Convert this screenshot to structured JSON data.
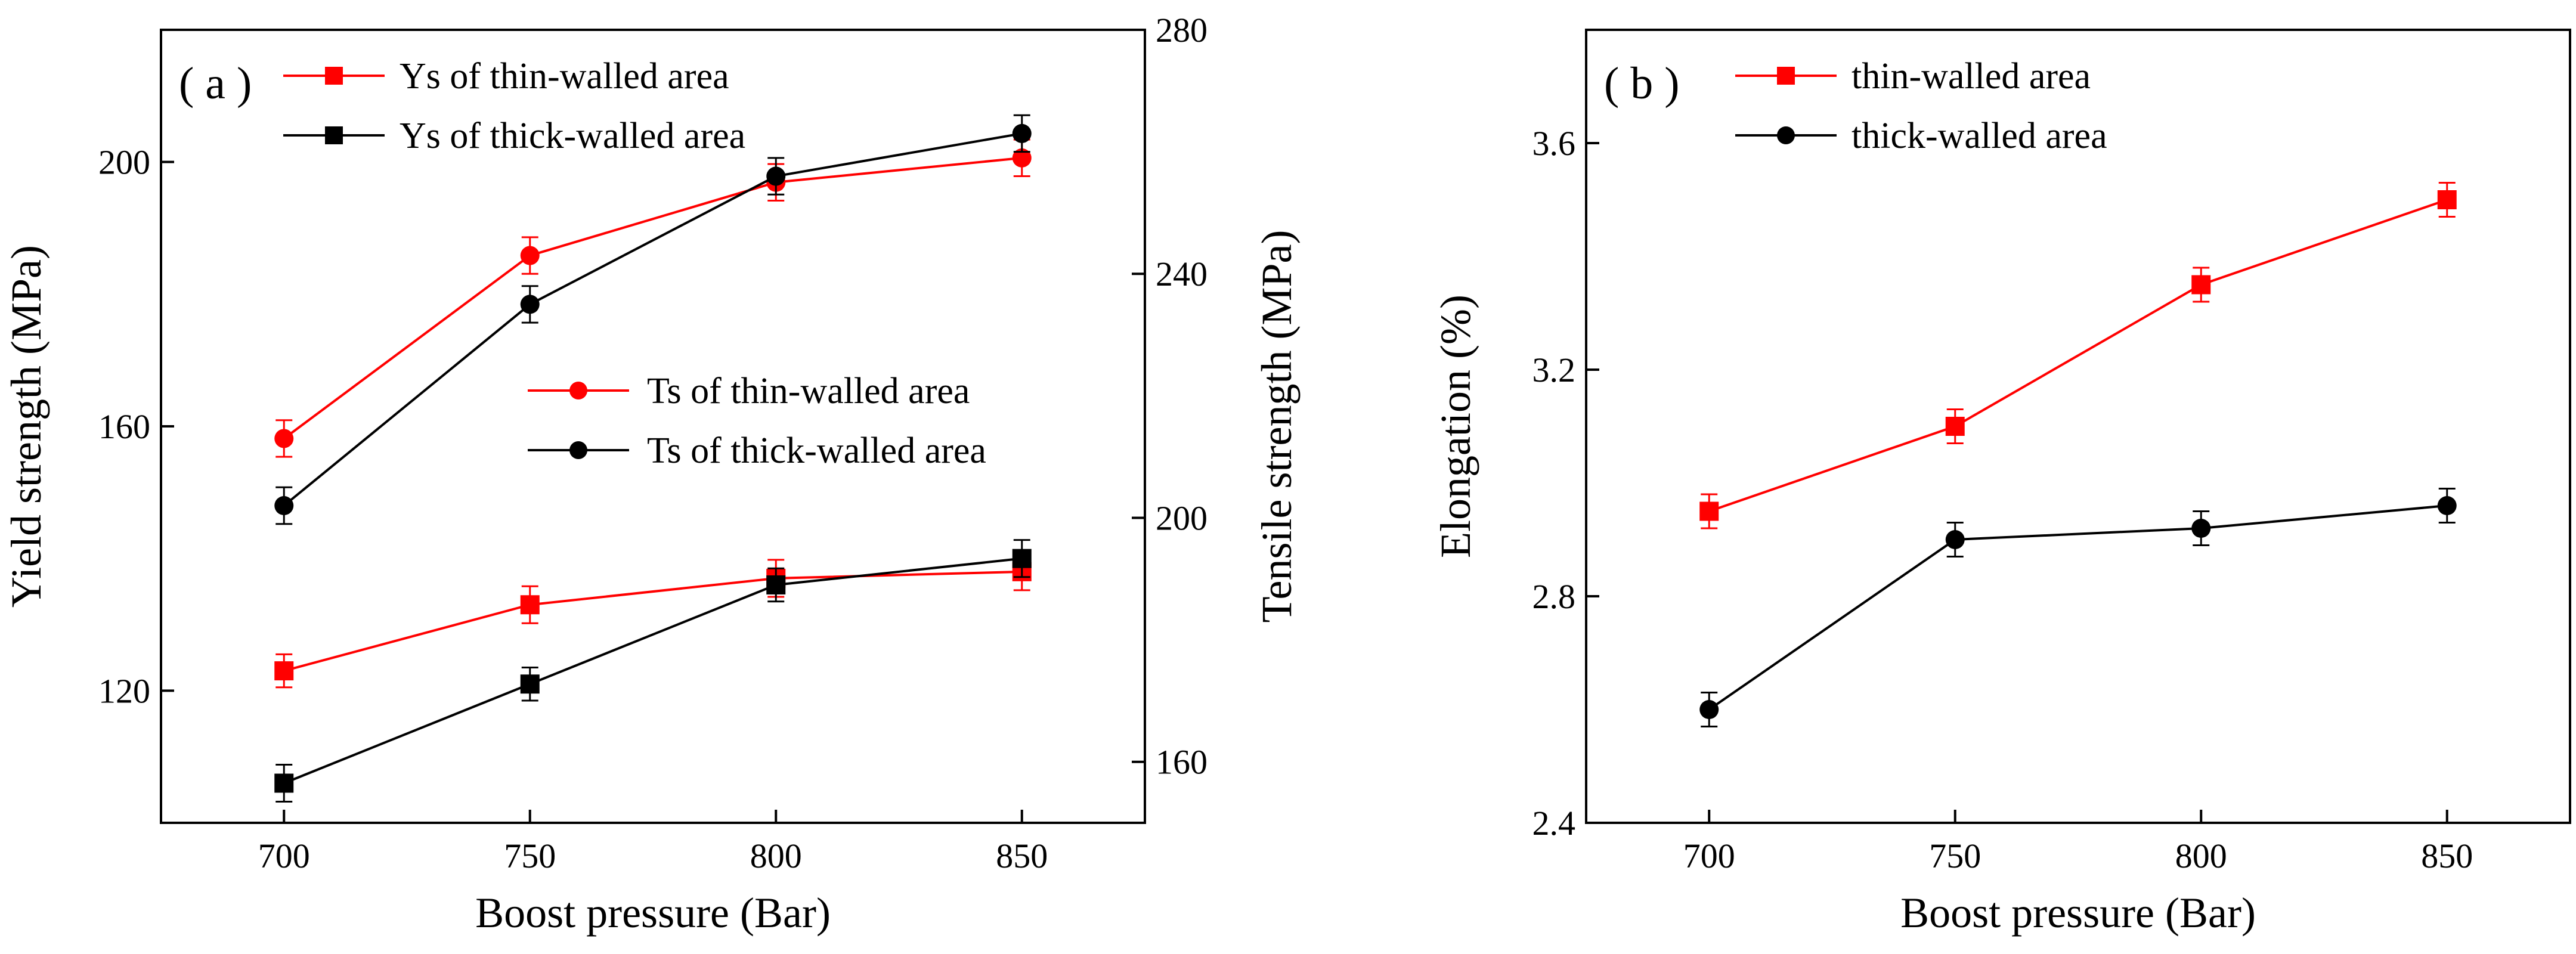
{
  "chart_data": [
    {
      "panel_label": "( a )",
      "type": "line",
      "xlabel": "Boost pressure (Bar)",
      "ylabel_left": "Yield strength (MPa)",
      "ylabel_right": "Tensile strength (MPa)",
      "x": [
        700,
        750,
        800,
        850
      ],
      "xlim": [
        675,
        875
      ],
      "ylim_left": [
        100,
        220
      ],
      "ylim_right": [
        150,
        280
      ],
      "x_ticks": [
        "700",
        "750",
        "800",
        "850"
      ],
      "y_ticks_left": [
        "120",
        "160",
        "200"
      ],
      "y_ticks_right": [
        "160",
        "200",
        "240",
        "280"
      ],
      "series": [
        {
          "name": "Ys of thin-walled area",
          "axis": "left",
          "color": "#ff0000",
          "marker": "square",
          "values": [
            123,
            133,
            137,
            138
          ],
          "errors": [
            2.5,
            2.8,
            2.8,
            2.8
          ]
        },
        {
          "name": "Ys of thick-walled area",
          "axis": "left",
          "color": "#000000",
          "marker": "square",
          "values": [
            106,
            121,
            136,
            140
          ],
          "errors": [
            2.8,
            2.5,
            2.5,
            2.8
          ]
        },
        {
          "name": "Ts of thin-walled area",
          "axis": "right",
          "color": "#ff0000",
          "marker": "circle",
          "values": [
            213,
            243,
            255,
            259
          ],
          "errors": [
            3,
            3,
            3,
            3
          ]
        },
        {
          "name": "Ts of thick-walled area",
          "axis": "right",
          "color": "#000000",
          "marker": "circle",
          "values": [
            202,
            235,
            256,
            263
          ],
          "errors": [
            3,
            3,
            3,
            3
          ]
        }
      ],
      "legend_groups": [
        {
          "position": "top-left",
          "entries": [
            "Ys of thin-walled area",
            "Ys of thick-walled area"
          ]
        },
        {
          "position": "center-right",
          "entries": [
            "Ts of thin-walled area",
            "Ts of thick-walled area"
          ]
        }
      ]
    },
    {
      "panel_label": "( b )",
      "type": "line",
      "xlabel": "Boost pressure (Bar)",
      "ylabel": "Elongation (%)",
      "x": [
        700,
        750,
        800,
        850
      ],
      "xlim": [
        675,
        875
      ],
      "ylim": [
        2.4,
        3.8
      ],
      "x_ticks": [
        "700",
        "750",
        "800",
        "850"
      ],
      "y_ticks": [
        "2.4",
        "2.8",
        "3.2",
        "3.6"
      ],
      "series": [
        {
          "name": "thin-walled area",
          "color": "#ff0000",
          "marker": "square",
          "values": [
            2.95,
            3.1,
            3.35,
            3.5
          ],
          "errors": [
            0.03,
            0.03,
            0.03,
            0.03
          ]
        },
        {
          "name": "thick-walled area",
          "color": "#000000",
          "marker": "circle",
          "values": [
            2.6,
            2.9,
            2.92,
            2.96
          ],
          "errors": [
            0.03,
            0.03,
            0.03,
            0.03
          ]
        }
      ],
      "legend_groups": [
        {
          "position": "top-left",
          "entries": [
            "thin-walled area",
            "thick-walled area"
          ]
        }
      ]
    }
  ]
}
